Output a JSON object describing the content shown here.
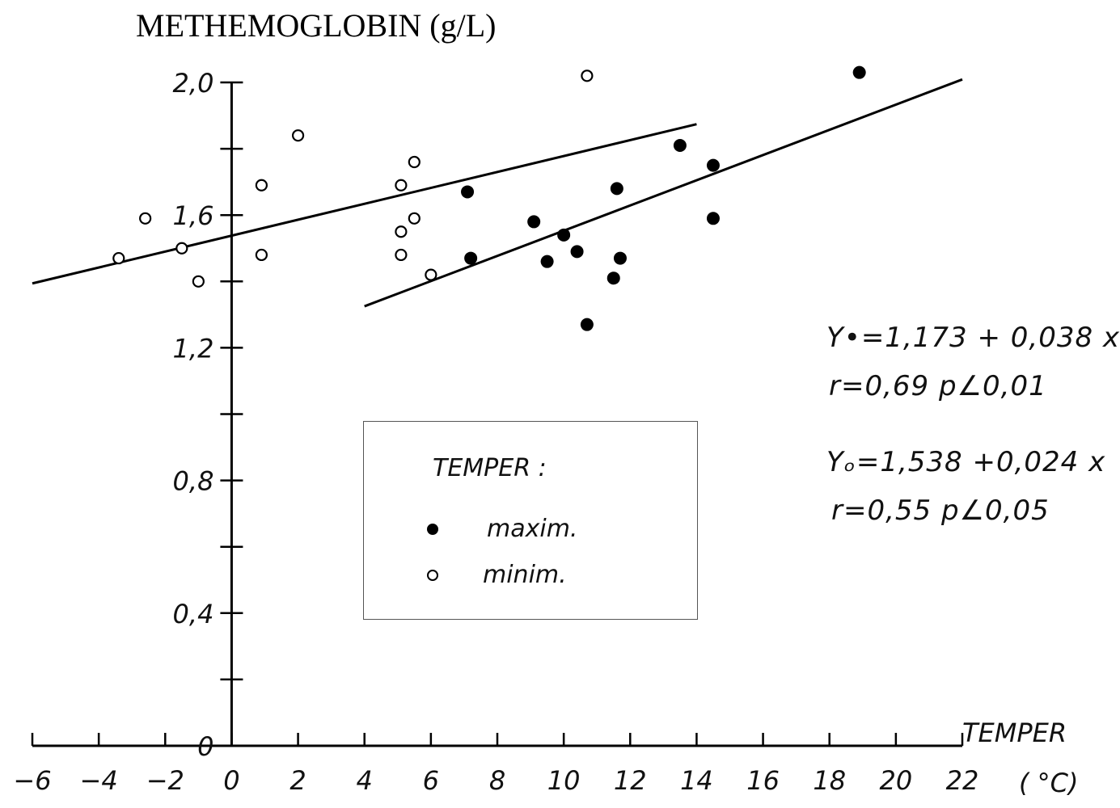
{
  "chart_data": {
    "type": "scatter",
    "title": "METHEMOGLOBIN (g/L)",
    "xlabel": "TEMPER",
    "xunit": "( °C)",
    "xlim": [
      -6,
      22
    ],
    "ylim": [
      0,
      2.0
    ],
    "xticks": [
      "-6",
      "-4",
      "-2",
      "0",
      "2",
      "4",
      "6",
      "8",
      "10",
      "12",
      "14",
      "16",
      "18",
      "20",
      "22"
    ],
    "yticks": [
      "0",
      "0,4",
      "0,8",
      "1,2",
      "1,6",
      "2,0"
    ],
    "grid": false,
    "legend": {
      "title": "TEMPER :",
      "position": "center",
      "items": [
        {
          "label": "maxim.",
          "marker": "filled"
        },
        {
          "label": "minim.",
          "marker": "open"
        }
      ]
    },
    "series": [
      {
        "name": "maxim.",
        "marker": "filled",
        "points": [
          {
            "x": 7.1,
            "y": 1.67
          },
          {
            "x": 7.2,
            "y": 1.47
          },
          {
            "x": 9.1,
            "y": 1.58
          },
          {
            "x": 9.5,
            "y": 1.46
          },
          {
            "x": 10.0,
            "y": 1.54
          },
          {
            "x": 10.4,
            "y": 1.49
          },
          {
            "x": 10.7,
            "y": 1.27
          },
          {
            "x": 11.5,
            "y": 1.41
          },
          {
            "x": 11.6,
            "y": 1.68
          },
          {
            "x": 11.7,
            "y": 1.47
          },
          {
            "x": 13.5,
            "y": 1.81
          },
          {
            "x": 14.5,
            "y": 1.75
          },
          {
            "x": 14.5,
            "y": 1.59
          },
          {
            "x": 18.9,
            "y": 2.03
          }
        ],
        "fit": {
          "intercept": 1.173,
          "slope": 0.038,
          "x_range": [
            4,
            22
          ]
        }
      },
      {
        "name": "minim.",
        "marker": "open",
        "points": [
          {
            "x": -3.4,
            "y": 1.47
          },
          {
            "x": -2.6,
            "y": 1.59
          },
          {
            "x": -1.5,
            "y": 1.5
          },
          {
            "x": -1.0,
            "y": 1.4
          },
          {
            "x": 0.9,
            "y": 1.69
          },
          {
            "x": 0.9,
            "y": 1.48
          },
          {
            "x": 2.0,
            "y": 1.84
          },
          {
            "x": 5.1,
            "y": 1.69
          },
          {
            "x": 5.1,
            "y": 1.55
          },
          {
            "x": 5.1,
            "y": 1.48
          },
          {
            "x": 5.5,
            "y": 1.76
          },
          {
            "x": 5.5,
            "y": 1.59
          },
          {
            "x": 6.0,
            "y": 1.42
          },
          {
            "x": 10.7,
            "y": 2.02
          }
        ],
        "fit": {
          "intercept": 1.538,
          "slope": 0.024,
          "x_range": [
            -6,
            14
          ]
        }
      }
    ],
    "annotations": {
      "max_eq": "Y•=1,173 + 0,038 x",
      "max_stats": "r=0,69    p∠0,01",
      "min_eq": "Yₒ=1,538 +0,024 x",
      "min_stats": "r=0,55    p∠0,05"
    }
  }
}
